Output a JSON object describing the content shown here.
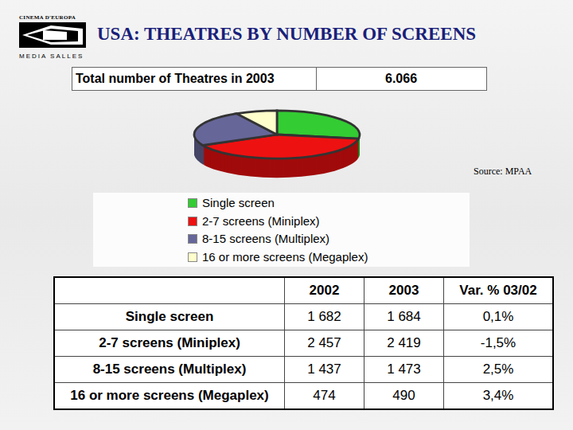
{
  "header": {
    "logo_top": "CINEMA D'EUROPA",
    "logo_bottom": "MEDIA SALLES",
    "title": "USA: THEATRES BY NUMBER OF SCREENS"
  },
  "total": {
    "label": "Total number of Theatres in 2003",
    "value": "6.066"
  },
  "source": "Source: MPAA",
  "chart_data": {
    "type": "pie",
    "categories": [
      "Single screen",
      "2-7 screens (Miniplex)",
      "8-15 screens (Multiplex)",
      "16 or more screens (Megaplex)"
    ],
    "values": [
      1684,
      2419,
      1473,
      490
    ],
    "colors": [
      "#33cc33",
      "#ee1111",
      "#666699",
      "#ffffcc"
    ],
    "legend": "bottom"
  },
  "table": {
    "columns": [
      "2002",
      "2003",
      "Var. % 03/02"
    ],
    "rows": [
      {
        "label": "Single screen",
        "cells": [
          "1 682",
          "1 684",
          "0,1%"
        ]
      },
      {
        "label": "2-7 screens (Miniplex)",
        "cells": [
          "2 457",
          "2 419",
          "-1,5%"
        ]
      },
      {
        "label": "8-15 screens (Multiplex)",
        "cells": [
          "1 437",
          "1 473",
          "2,5%"
        ]
      },
      {
        "label": "16 or more screens (Megaplex)",
        "cells": [
          "474",
          "490",
          "3,4%"
        ]
      }
    ]
  }
}
